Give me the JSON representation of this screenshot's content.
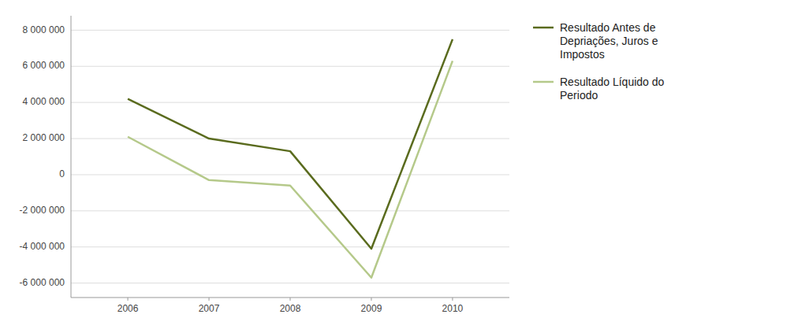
{
  "chart_data": {
    "type": "line",
    "x": [
      2006,
      2007,
      2008,
      2009,
      2010
    ],
    "xlim": [
      2005.3,
      2010.7
    ],
    "xticks": [
      2006,
      2007,
      2008,
      2009,
      2010
    ],
    "ylim": [
      -6800000,
      8800000
    ],
    "yticks": [
      {
        "value": -6000000,
        "label": "-6 000 000"
      },
      {
        "value": -4000000,
        "label": "-4 000 000"
      },
      {
        "value": -2000000,
        "label": "-2 000 000"
      },
      0,
      {
        "value": 2000000,
        "label": "2 000 000"
      },
      {
        "value": 4000000,
        "label": "4 000 000"
      },
      {
        "value": 6000000,
        "label": "6 000 000"
      },
      {
        "value": 8000000,
        "label": "8 000 000"
      }
    ],
    "grid": true,
    "legend": "right",
    "series": [
      {
        "name": "Resultado Antes de\nDepriações, Juros e\nImpostos",
        "color": "#5a6b1e",
        "values": [
          4200000,
          2000000,
          1300000,
          -4100000,
          7500000
        ]
      },
      {
        "name": "Resultado Líquido do\nPeriodo",
        "color": "#b5c98a",
        "values": [
          2100000,
          -300000,
          -600000,
          -5700000,
          6300000
        ]
      }
    ]
  }
}
